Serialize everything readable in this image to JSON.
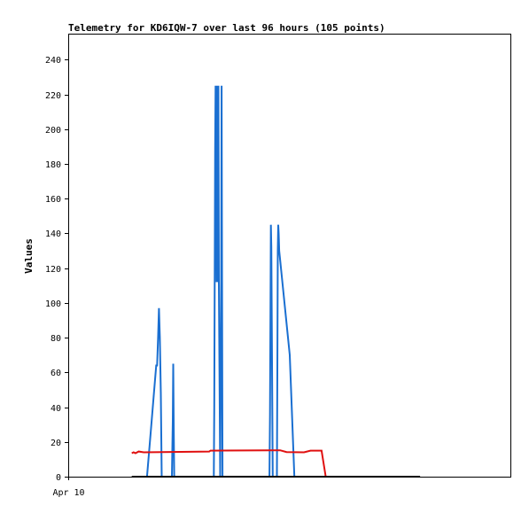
{
  "chart_data": {
    "type": "line",
    "title": "Telemetry for KD6IQW-7 over last 96 hours (105 points)",
    "xlabel": "",
    "ylabel": "Values",
    "x_tick_labels": [
      "Apr 10"
    ],
    "xlim": [
      0,
      96
    ],
    "ylim": [
      0,
      255
    ],
    "y_ticks": [
      0,
      20,
      40,
      60,
      80,
      100,
      120,
      140,
      160,
      180,
      200,
      220,
      240
    ],
    "grid": false,
    "series": [
      {
        "color": "#1a6fd1",
        "points": [
          [
            16.4,
            0
          ],
          [
            17.1,
            0
          ],
          [
            17.9,
            25
          ],
          [
            18.6,
            48
          ],
          [
            19.1,
            64
          ],
          [
            19.3,
            64
          ],
          [
            19.5,
            80
          ],
          [
            19.7,
            97
          ],
          [
            19.9,
            80
          ],
          [
            20.1,
            48
          ],
          [
            20.3,
            0
          ],
          [
            22.5,
            0
          ],
          [
            22.7,
            32
          ],
          [
            22.8,
            65
          ],
          [
            22.9,
            32
          ],
          [
            23.0,
            0
          ],
          [
            31.6,
            0
          ],
          [
            31.7,
            40
          ],
          [
            31.8,
            112
          ],
          [
            31.9,
            188
          ],
          [
            32.0,
            225
          ],
          [
            32.1,
            188
          ],
          [
            32.2,
            112
          ],
          [
            32.3,
            225
          ],
          [
            32.4,
            112
          ],
          [
            32.6,
            225
          ],
          [
            32.7,
            112
          ],
          [
            33.0,
            0
          ],
          [
            33.1,
            56
          ],
          [
            33.2,
            112
          ],
          [
            33.3,
            225
          ],
          [
            33.4,
            112
          ],
          [
            33.5,
            0
          ],
          [
            43.7,
            0
          ],
          [
            43.8,
            36
          ],
          [
            43.9,
            90
          ],
          [
            44.0,
            145
          ],
          [
            44.1,
            132
          ],
          [
            44.2,
            90
          ],
          [
            44.3,
            40
          ],
          [
            44.4,
            0
          ],
          [
            45.3,
            0
          ],
          [
            45.4,
            60
          ],
          [
            45.5,
            130
          ],
          [
            45.6,
            145
          ],
          [
            45.7,
            140
          ],
          [
            45.8,
            130
          ],
          [
            48.1,
            70
          ],
          [
            49.1,
            0
          ]
        ]
      },
      {
        "color": "#e01010",
        "points": [
          [
            13.8,
            13.5
          ],
          [
            14.2,
            14
          ],
          [
            14.6,
            13.5
          ],
          [
            15.3,
            14.5
          ],
          [
            16.4,
            14
          ],
          [
            30.6,
            14.5
          ],
          [
            30.9,
            15
          ],
          [
            44.0,
            15.2
          ],
          [
            46.0,
            15.2
          ],
          [
            47.4,
            14.2
          ],
          [
            51.2,
            14
          ],
          [
            52.6,
            15
          ],
          [
            55.0,
            15
          ],
          [
            55.9,
            0
          ]
        ]
      },
      {
        "color": "#000000",
        "points": [
          [
            13.8,
            0
          ],
          [
            76.4,
            0
          ]
        ]
      }
    ]
  }
}
